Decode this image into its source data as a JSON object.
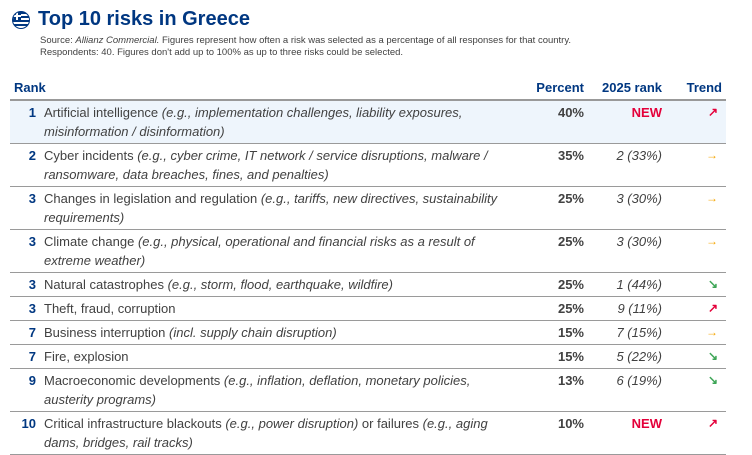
{
  "header": {
    "title": "Top 10 risks in Greece",
    "source_label": "Source:",
    "source_name": "Allianz Commercial.",
    "source_text": " Figures represent how often a risk was selected as a percentage of all responses for that country.",
    "respondents": "Respondents: 40. Figures don't add up to 100% as up to three risks could be selected."
  },
  "colors": {
    "brand": "#003781",
    "new": "#e4003a",
    "trend_up": "#e4003a",
    "trend_flat": "#f5a500",
    "trend_down": "#3da556"
  },
  "table": {
    "columns": [
      "Rank",
      "Percent",
      "2025 rank",
      "Trend"
    ],
    "rows": [
      {
        "rank": "1",
        "risk": "Artificial intelligence",
        "detail": " (e.g., implementation challenges, liability exposures, misinformation / disinformation)",
        "tail": "",
        "tail_detail": "",
        "percent": "40%",
        "rank_2025": "NEW",
        "trend": "up",
        "trend_glyph": "↗"
      },
      {
        "rank": "2",
        "risk": "Cyber incidents",
        "detail": " (e.g., cyber crime, IT network / service disruptions, malware / ransomware, data breaches, fines, and penalties)",
        "tail": "",
        "tail_detail": "",
        "percent": "35%",
        "rank_2025": "2 (33%)",
        "trend": "flat",
        "trend_glyph": "→"
      },
      {
        "rank": "3",
        "risk": "Changes in legislation and regulation",
        "detail": " (e.g., tariffs, new directives, sustainability requirements)",
        "tail": "",
        "tail_detail": "",
        "percent": "25%",
        "rank_2025": "3 (30%)",
        "trend": "flat",
        "trend_glyph": "→"
      },
      {
        "rank": "3",
        "risk": "Climate change",
        "detail": " (e.g., physical, operational and financial risks as a result of extreme weather)",
        "tail": "",
        "tail_detail": "",
        "percent": "25%",
        "rank_2025": "3 (30%)",
        "trend": "flat",
        "trend_glyph": "→"
      },
      {
        "rank": "3",
        "risk": "Natural catastrophes",
        "detail": " (e.g., storm, flood, earthquake, wildfire)",
        "tail": "",
        "tail_detail": "",
        "percent": "25%",
        "rank_2025": "1 (44%)",
        "trend": "down",
        "trend_glyph": "↘"
      },
      {
        "rank": "3",
        "risk": "Theft, fraud, corruption",
        "detail": "",
        "tail": "",
        "tail_detail": "",
        "percent": "25%",
        "rank_2025": "9 (11%)",
        "trend": "up",
        "trend_glyph": "↗"
      },
      {
        "rank": "7",
        "risk": "Business interruption",
        "detail": " (incl. supply chain disruption)",
        "tail": "",
        "tail_detail": "",
        "percent": "15%",
        "rank_2025": "7 (15%)",
        "trend": "flat",
        "trend_glyph": "→"
      },
      {
        "rank": "7",
        "risk": "Fire, explosion",
        "detail": "",
        "tail": "",
        "tail_detail": "",
        "percent": "15%",
        "rank_2025": "5 (22%)",
        "trend": "down",
        "trend_glyph": "↘"
      },
      {
        "rank": "9",
        "risk": "Macroeconomic developments",
        "detail": " (e.g., inflation, deflation, monetary policies, austerity programs)",
        "tail": "",
        "tail_detail": "",
        "percent": "13%",
        "rank_2025": "6 (19%)",
        "trend": "down",
        "trend_glyph": "↘"
      },
      {
        "rank": "10",
        "risk": "Critical infrastructure blackouts",
        "detail": " (e.g., power disruption)",
        "tail": " or failures",
        "tail_detail": " (e.g., aging dams, bridges, rail tracks)",
        "percent": "10%",
        "rank_2025": "NEW",
        "trend": "up",
        "trend_glyph": "↗"
      }
    ]
  }
}
